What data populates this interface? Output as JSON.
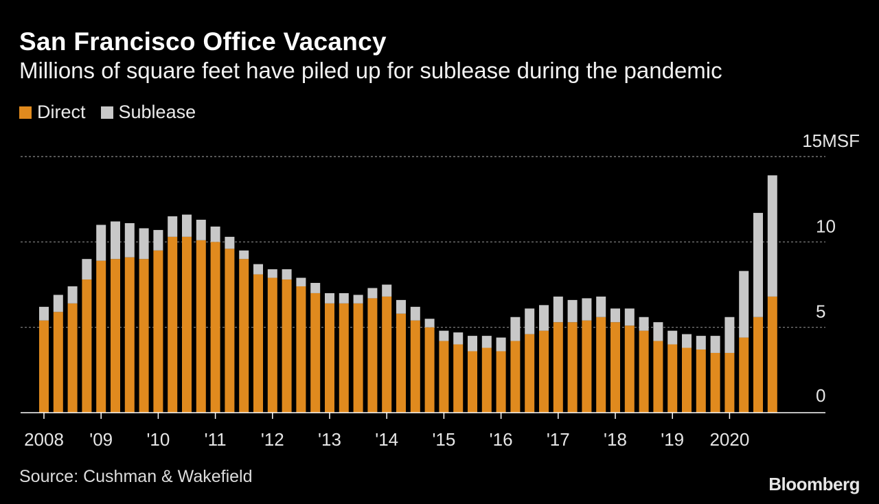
{
  "title": "San Francisco Office Vacancy",
  "subtitle": "Millions of square feet have piled up for sublease during the pandemic",
  "legend": [
    {
      "label": "Direct",
      "color": "#e08a1e"
    },
    {
      "label": "Sublease",
      "color": "#c8c8c8"
    }
  ],
  "source": "Source: Cushman & Wakefield",
  "brand": "Bloomberg",
  "colors": {
    "background": "#000000",
    "direct": "#e08a1e",
    "sublease": "#c8c8c8",
    "gridline": "#8a8a8a",
    "axis": "#ffffff"
  },
  "chart_data": {
    "type": "bar",
    "stacked": true,
    "title": "San Francisco Office Vacancy",
    "ylabel": "MSF",
    "ylim": [
      0,
      15
    ],
    "yticks": [
      {
        "value": 0,
        "label": "0"
      },
      {
        "value": 5,
        "label": "5"
      },
      {
        "value": 10,
        "label": "10"
      },
      {
        "value": 15,
        "label": "15MSF"
      }
    ],
    "grid": true,
    "legend_position": "top-left",
    "xticks": [
      {
        "index": 0,
        "label": "2008"
      },
      {
        "index": 4,
        "label": "'09"
      },
      {
        "index": 8,
        "label": "'10"
      },
      {
        "index": 12,
        "label": "'11"
      },
      {
        "index": 16,
        "label": "'12"
      },
      {
        "index": 20,
        "label": "'13"
      },
      {
        "index": 24,
        "label": "'14"
      },
      {
        "index": 28,
        "label": "'15"
      },
      {
        "index": 32,
        "label": "'16"
      },
      {
        "index": 36,
        "label": "'17"
      },
      {
        "index": 40,
        "label": "'18"
      },
      {
        "index": 44,
        "label": "'19"
      },
      {
        "index": 48,
        "label": "2020"
      }
    ],
    "categories": [
      "2008 Q1",
      "2008 Q2",
      "2008 Q3",
      "2008 Q4",
      "2009 Q1",
      "2009 Q2",
      "2009 Q3",
      "2009 Q4",
      "2010 Q1",
      "2010 Q2",
      "2010 Q3",
      "2010 Q4",
      "2011 Q1",
      "2011 Q2",
      "2011 Q3",
      "2011 Q4",
      "2012 Q1",
      "2012 Q2",
      "2012 Q3",
      "2012 Q4",
      "2013 Q1",
      "2013 Q2",
      "2013 Q3",
      "2013 Q4",
      "2014 Q1",
      "2014 Q2",
      "2014 Q3",
      "2014 Q4",
      "2015 Q1",
      "2015 Q2",
      "2015 Q3",
      "2015 Q4",
      "2016 Q1",
      "2016 Q2",
      "2016 Q3",
      "2016 Q4",
      "2017 Q1",
      "2017 Q2",
      "2017 Q3",
      "2017 Q4",
      "2018 Q1",
      "2018 Q2",
      "2018 Q3",
      "2018 Q4",
      "2019 Q1",
      "2019 Q2",
      "2019 Q3",
      "2019 Q4",
      "2020 Q1",
      "2020 Q2",
      "2020 Q3",
      "2020 Q4"
    ],
    "series": [
      {
        "name": "Direct",
        "color": "#e08a1e",
        "values": [
          5.4,
          5.9,
          6.4,
          7.8,
          8.9,
          9.0,
          9.1,
          9.0,
          9.5,
          10.3,
          10.3,
          10.1,
          10.0,
          9.6,
          9.0,
          8.1,
          7.9,
          7.8,
          7.4,
          7.0,
          6.4,
          6.4,
          6.4,
          6.7,
          6.8,
          5.8,
          5.4,
          5.0,
          4.2,
          4.0,
          3.6,
          3.8,
          3.6,
          4.2,
          4.6,
          4.8,
          5.3,
          5.3,
          5.4,
          5.6,
          5.3,
          5.1,
          4.8,
          4.2,
          4.0,
          3.8,
          3.7,
          3.5,
          3.5,
          4.4,
          5.6,
          6.8
        ]
      },
      {
        "name": "Sublease",
        "color": "#c8c8c8",
        "values": [
          0.8,
          1.0,
          1.0,
          1.2,
          2.1,
          2.2,
          2.0,
          1.8,
          1.2,
          1.2,
          1.3,
          1.2,
          0.9,
          0.7,
          0.5,
          0.6,
          0.5,
          0.6,
          0.5,
          0.6,
          0.6,
          0.6,
          0.5,
          0.6,
          0.7,
          0.8,
          0.8,
          0.5,
          0.6,
          0.7,
          0.9,
          0.7,
          0.8,
          1.4,
          1.5,
          1.5,
          1.5,
          1.3,
          1.3,
          1.2,
          0.8,
          1.0,
          0.8,
          1.1,
          0.8,
          0.8,
          0.8,
          1.0,
          2.1,
          3.9,
          6.1,
          7.1
        ]
      }
    ]
  }
}
